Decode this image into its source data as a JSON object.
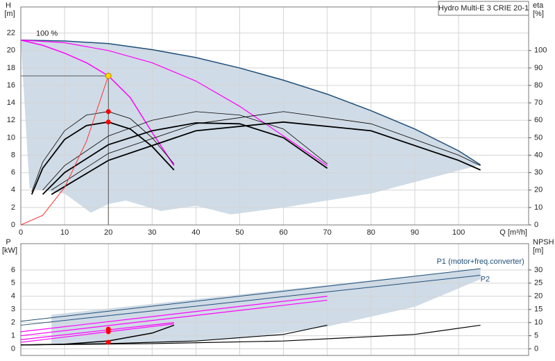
{
  "chart_data": [
    {
      "type": "line",
      "legend_box_text": "Hydro Multi-E 3 CRIE 20-1",
      "ylabel": "H",
      "yunit": "[m]",
      "y2label": "eta",
      "y2unit": "[%]",
      "xlabel": "Q [m³/h]",
      "annotation": "100 %",
      "xlim": [
        0,
        116
      ],
      "ylim": [
        0,
        25
      ],
      "y2lim": [
        0,
        125
      ],
      "xticks": [
        0,
        10,
        20,
        30,
        40,
        50,
        60,
        70,
        80,
        90,
        100
      ],
      "yticks": [
        0,
        2,
        4,
        6,
        8,
        10,
        12,
        14,
        16,
        18,
        20,
        22
      ],
      "y2ticks": [
        0,
        10,
        20,
        30,
        40,
        50,
        60,
        70,
        80,
        90,
        100
      ],
      "grid": true,
      "areas": [
        {
          "color": "#cfdbe6",
          "x": [
            0,
            10,
            20,
            30,
            40,
            50,
            60,
            70,
            80,
            90,
            100,
            105,
            80,
            60,
            48,
            40,
            32,
            24,
            20,
            16,
            10,
            2,
            0
          ],
          "values": [
            21.2,
            21.1,
            20.8,
            20.1,
            19.2,
            18.0,
            16.6,
            15.0,
            13.1,
            11.0,
            8.5,
            6.9,
            3.6,
            2.0,
            1.2,
            2.2,
            1.6,
            2.8,
            2.4,
            1.4,
            3.6,
            4.2,
            21.2
          ]
        }
      ],
      "series": [
        {
          "color": "#1f4e79",
          "width": 1.5,
          "x": [
            0,
            10,
            20,
            30,
            40,
            50,
            60,
            70,
            80,
            90,
            100,
            105
          ],
          "values": [
            21.2,
            21.1,
            20.8,
            20.1,
            19.2,
            18.0,
            16.6,
            15.0,
            13.1,
            11.0,
            8.5,
            6.9
          ]
        },
        {
          "color": "#ff00ff",
          "width": 1.5,
          "x": [
            0,
            5,
            10,
            15,
            20,
            25,
            30,
            35
          ],
          "values": [
            21.2,
            20.6,
            19.7,
            18.6,
            17.1,
            14.6,
            10.6,
            6.8
          ]
        },
        {
          "color": "#ff00ff",
          "width": 1.2,
          "x": [
            0,
            10,
            20,
            30,
            40,
            50,
            60,
            70
          ],
          "values": [
            21.2,
            20.9,
            20.0,
            18.6,
            16.5,
            13.6,
            10.2,
            6.8
          ]
        },
        {
          "color": "#000000",
          "width": 1.8,
          "axis": "y2",
          "x": [
            2.5,
            5,
            10,
            15,
            20,
            25,
            30,
            35
          ],
          "values": [
            17.5,
            32.5,
            49,
            57,
            59,
            55,
            45,
            31.5
          ]
        },
        {
          "color": "#000000",
          "width": 0.8,
          "axis": "y2",
          "x": [
            2.5,
            5,
            10,
            15,
            20,
            25,
            30,
            35
          ],
          "values": [
            19,
            36,
            54,
            63,
            65,
            61,
            50,
            35
          ]
        },
        {
          "color": "#000000",
          "width": 1.8,
          "axis": "y2",
          "x": [
            5,
            10,
            20,
            30,
            40,
            50,
            60,
            70
          ],
          "values": [
            17.5,
            30,
            46,
            54,
            58.5,
            58,
            50,
            32.5
          ]
        },
        {
          "color": "#000000",
          "width": 0.8,
          "axis": "y2",
          "x": [
            5,
            10,
            20,
            30,
            40,
            50,
            60,
            70
          ],
          "values": [
            20,
            34,
            51,
            60,
            65,
            63,
            55,
            35
          ]
        },
        {
          "color": "#000000",
          "width": 1.8,
          "axis": "y2",
          "x": [
            7,
            20,
            40,
            60,
            80,
            100,
            105
          ],
          "values": [
            17.5,
            37,
            54,
            59,
            54,
            37,
            31.5
          ]
        },
        {
          "color": "#000000",
          "width": 0.8,
          "axis": "y2",
          "x": [
            7,
            20,
            40,
            60,
            80,
            100,
            105
          ],
          "values": [
            20,
            41,
            58,
            65,
            58,
            40,
            34
          ]
        },
        {
          "color": "#ff3333",
          "width": 1,
          "x": [
            0,
            5,
            10,
            15,
            20
          ],
          "values": [
            0,
            1.1,
            4.3,
            9.6,
            17.1
          ]
        }
      ],
      "points": [
        {
          "color": "#ffd700",
          "x": 20,
          "values": 17.1,
          "duty": true
        },
        {
          "color": "#ff0000",
          "axis": "y2",
          "x": 20,
          "values": 65
        },
        {
          "color": "#ff0000",
          "axis": "y2",
          "x": 20,
          "values": 59
        }
      ]
    },
    {
      "type": "line",
      "ylabel": "P",
      "yunit": "[kW]",
      "y2label": "NPSH",
      "y2unit": "[m]",
      "xlim": [
        0,
        116
      ],
      "ylim": [
        -0.5,
        8
      ],
      "y2lim": [
        -2.5,
        40
      ],
      "xticks": [
        0,
        10,
        20,
        30,
        40,
        50,
        60,
        70,
        80,
        90,
        100
      ],
      "yticks": [
        0,
        1,
        2,
        3,
        4,
        5,
        6
      ],
      "y2ticks": [
        0,
        5,
        10,
        15,
        20,
        25,
        30
      ],
      "grid": true,
      "areas": [
        {
          "color": "#cfdbe6",
          "x": [
            7,
            105,
            105,
            90,
            70,
            50,
            35,
            20,
            7
          ],
          "values": [
            2.6,
            6.1,
            5.3,
            3.2,
            1.7,
            0.8,
            0.5,
            0.4,
            0.4
          ]
        }
      ],
      "series_labels": [
        {
          "text": "P1 (motor+freq.converter)",
          "series": 0
        },
        {
          "text": "P2",
          "series": 1
        }
      ],
      "series": [
        {
          "color": "#1f4e79",
          "width": 1,
          "x": [
            0,
            105
          ],
          "values": [
            2.1,
            6.1
          ]
        },
        {
          "color": "#1f4e79",
          "width": 1,
          "x": [
            0,
            105
          ],
          "values": [
            1.8,
            5.6
          ]
        },
        {
          "color": "#ff00ff",
          "width": 1.2,
          "x": [
            0,
            70
          ],
          "values": [
            1.3,
            4.0
          ]
        },
        {
          "color": "#ff00ff",
          "width": 1.2,
          "x": [
            0,
            70
          ],
          "values": [
            1.0,
            3.7
          ]
        },
        {
          "color": "#ff00ff",
          "width": 1.2,
          "x": [
            0,
            35
          ],
          "values": [
            0.7,
            2.0
          ]
        },
        {
          "color": "#ff00ff",
          "width": 1.2,
          "x": [
            0,
            35
          ],
          "values": [
            0.5,
            1.9
          ]
        },
        {
          "color": "#000000",
          "width": 1.5,
          "axis": "y2",
          "x": [
            0,
            10,
            20,
            30,
            35
          ],
          "values": [
            1.5,
            1.8,
            3,
            6,
            9
          ]
        },
        {
          "color": "#000000",
          "width": 1.2,
          "axis": "y2",
          "x": [
            0,
            20,
            40,
            60,
            70
          ],
          "values": [
            1.5,
            2,
            3,
            5.5,
            9
          ]
        },
        {
          "color": "#000000",
          "width": 1.2,
          "axis": "y2",
          "x": [
            0,
            30,
            60,
            90,
            105
          ],
          "values": [
            1.5,
            2,
            3,
            5.5,
            9
          ]
        }
      ],
      "points": [
        {
          "color": "#ff0000",
          "x": 20,
          "values": 1.5
        },
        {
          "color": "#ff0000",
          "x": 20,
          "values": 1.3
        },
        {
          "color": "#ff0000",
          "x": 20,
          "values": 0.5
        }
      ]
    }
  ]
}
